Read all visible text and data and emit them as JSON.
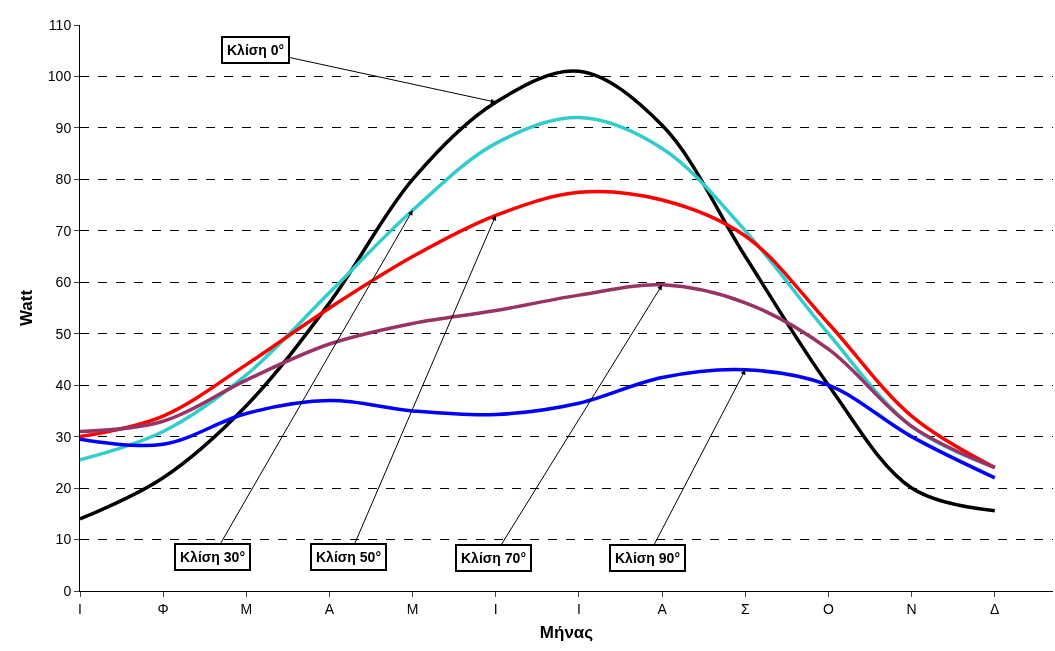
{
  "chart_data": {
    "type": "line",
    "xlabel": "Μήνας",
    "ylabel": "Watt",
    "categories": [
      "Ι",
      "Φ",
      "Μ",
      "Α",
      "Μ",
      "Ι",
      "Ι",
      "Α",
      "Σ",
      "Ο",
      "Ν",
      "Δ"
    ],
    "series": [
      {
        "name": "Κλίση 0°",
        "color": "#000000",
        "values": [
          14,
          22,
          36,
          56,
          80,
          95,
          101,
          90.5,
          65,
          40,
          20,
          15.6
        ]
      },
      {
        "name": "Κλίση 30°",
        "color": "#33cccc",
        "values": [
          25.5,
          31,
          42,
          58,
          74,
          87,
          92,
          86,
          70,
          50,
          32,
          24
        ]
      },
      {
        "name": "Κλίση 50°",
        "color": "#ff0000",
        "values": [
          30,
          34,
          44,
          55,
          65,
          73,
          77.5,
          76,
          69,
          52,
          34,
          24
        ]
      },
      {
        "name": "Κλίση 70°",
        "color": "#993366",
        "values": [
          31,
          33,
          41,
          48,
          52,
          54.5,
          57.5,
          59.5,
          56,
          47,
          32,
          24
        ]
      },
      {
        "name": "Κλίση 90°",
        "color": "#0000ff",
        "values": [
          29.5,
          28.5,
          34.5,
          37,
          35,
          34.3,
          36.5,
          41.5,
          43,
          40,
          30,
          22
        ]
      }
    ],
    "ylim": [
      0,
      110
    ],
    "yticks": [
      0,
      10,
      20,
      30,
      40,
      50,
      60,
      70,
      80,
      90,
      100,
      110
    ],
    "grid": "y",
    "legend": false,
    "line_style": "solid",
    "marker": "none"
  }
}
